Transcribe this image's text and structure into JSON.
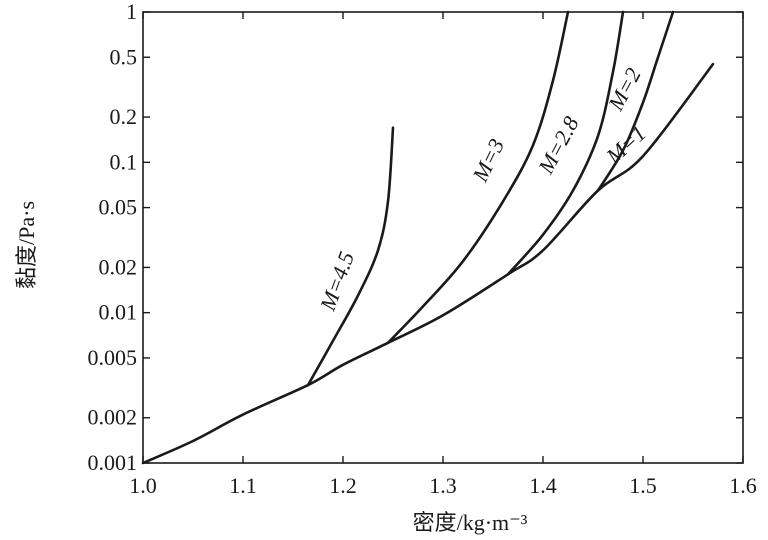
{
  "chart_data": {
    "type": "line",
    "title": "",
    "xlabel": "密度/kg·m⁻³",
    "ylabel": "黏度/Pa·s",
    "xlim": [
      1.0,
      1.6
    ],
    "ylim": [
      0.001,
      1
    ],
    "yscale": "log",
    "grid": false,
    "x_ticks": [
      1.0,
      1.1,
      1.2,
      1.3,
      1.4,
      1.5,
      1.6
    ],
    "x_tick_labels": [
      "1.0",
      "1.1",
      "1.2",
      "1.3",
      "1.4",
      "1.5",
      "1.6"
    ],
    "y_ticks": [
      0.001,
      0.002,
      0.005,
      0.01,
      0.02,
      0.05,
      0.1,
      0.2,
      0.5,
      1
    ],
    "y_tick_labels": [
      "0.001",
      "0.002",
      "0.005",
      "0.01",
      "0.02",
      "0.05",
      "0.1",
      "0.2",
      "0.5",
      "1"
    ],
    "series": [
      {
        "name": "M=1",
        "label": "M=1",
        "x": [
          1.0,
          1.05,
          1.1,
          1.165,
          1.2,
          1.245,
          1.3,
          1.365,
          1.4,
          1.455,
          1.5,
          1.57
        ],
        "y": [
          0.001,
          0.0014,
          0.0021,
          0.0033,
          0.0045,
          0.0063,
          0.0096,
          0.018,
          0.026,
          0.065,
          0.11,
          0.45
        ]
      },
      {
        "name": "M=4.5",
        "label": "M=4.5",
        "x": [
          1.165,
          1.19,
          1.215,
          1.235,
          1.245,
          1.25
        ],
        "y": [
          0.0033,
          0.0065,
          0.013,
          0.026,
          0.055,
          0.17
        ]
      },
      {
        "name": "M=3",
        "label": "M=3",
        "x": [
          1.245,
          1.28,
          1.32,
          1.36,
          1.39,
          1.41,
          1.425
        ],
        "y": [
          0.0063,
          0.011,
          0.022,
          0.055,
          0.13,
          0.35,
          1.0
        ]
      },
      {
        "name": "M=2.8",
        "label": "M=2.8",
        "x": [
          1.365,
          1.4,
          1.43,
          1.455,
          1.47,
          1.48
        ],
        "y": [
          0.018,
          0.033,
          0.065,
          0.15,
          0.4,
          1.0
        ]
      },
      {
        "name": "M=2",
        "label": "M=2",
        "x": [
          1.455,
          1.48,
          1.5,
          1.515,
          1.53
        ],
        "y": [
          0.065,
          0.12,
          0.25,
          0.5,
          1.0
        ]
      }
    ]
  }
}
